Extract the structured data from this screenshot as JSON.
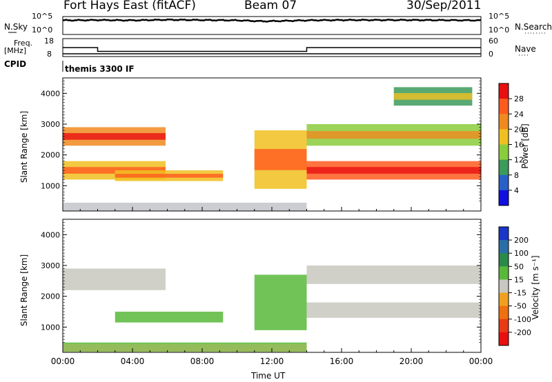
{
  "header": {
    "station": "Fort Hays East (fitACF)",
    "beam": "Beam 07",
    "date": "30/Sep/2011"
  },
  "summary_panel": {
    "nsky_label": "N.Sky",
    "nsky_ticks": [
      "10^5",
      "10^0"
    ],
    "nsearch_label": "N.Search",
    "nsearch_ticks": [
      "10^5",
      "10^0"
    ],
    "freq_label": "Freq.",
    "freq_unit": "[MHz]",
    "freq_ticks": [
      "18",
      "8"
    ],
    "nave_label": "Nave",
    "nave_ticks": [
      "60",
      "0"
    ],
    "cpid_label": "CPID",
    "cpid_value": "themis 3300 IF"
  },
  "colorbar_power": {
    "label": "Power [dB]",
    "ticks": [
      "28",
      "24",
      "20",
      "16",
      "12",
      "8",
      "4"
    ],
    "colors": [
      "#e81010",
      "#ff5a1e",
      "#f08a1e",
      "#f0c020",
      "#8acd3c",
      "#3c9a5a",
      "#2860c8",
      "#1010e0"
    ]
  },
  "colorbar_velocity": {
    "label": "Velocity [m s⁻¹]",
    "ticks": [
      "200",
      "100",
      "50",
      "15",
      "-15",
      "-50",
      "-100",
      "-200"
    ],
    "colors": [
      "#1a36c8",
      "#2a6ea8",
      "#2a8a4a",
      "#58b83a",
      "#c8c8c0",
      "#f0a020",
      "#f07010",
      "#e83a14",
      "#e81010"
    ]
  },
  "axes": {
    "ylabel": "Slant Range [km]",
    "y_ticks": [
      "4000",
      "3000",
      "2000",
      "1000"
    ],
    "xlabel": "Time UT",
    "x_ticks": [
      "00:00",
      "04:00",
      "08:00",
      "12:00",
      "16:00",
      "20:00",
      "00:00"
    ]
  },
  "chart_data": [
    {
      "type": "line",
      "title": "",
      "series": [
        {
          "name": "N.Sky",
          "x_hours": [
            0,
            2,
            4,
            6,
            8,
            10,
            11.5,
            12.5,
            14,
            16,
            20,
            24
          ],
          "log10_values": [
            4.2,
            4.3,
            4.2,
            4.4,
            4.3,
            4.2,
            3.9,
            4.0,
            4.2,
            4.3,
            4.3,
            4.2
          ]
        },
        {
          "name": "Freq.",
          "x_hours": [
            0,
            2,
            2,
            14,
            14,
            24
          ],
          "values": [
            13,
            13,
            10.5,
            10.5,
            13,
            13
          ],
          "unit": "MHz",
          "ylim": [
            8,
            18
          ]
        }
      ]
    },
    {
      "type": "heatmap",
      "title": "Power",
      "xlabel": "Time UT",
      "ylabel": "Slant Range [km]",
      "xlim_hours": [
        0,
        24
      ],
      "ylim_km": [
        180,
        4500
      ],
      "colorbar": {
        "label": "Power [dB]",
        "ticks": [
          4,
          8,
          12,
          16,
          20,
          24,
          28
        ]
      },
      "echo_regions": [
        {
          "t_start": 0,
          "t_end": 5.9,
          "range_min": 1200,
          "range_max": 1800,
          "power_db": 16
        },
        {
          "t_start": 0,
          "t_end": 5.9,
          "range_min": 2300,
          "range_max": 2900,
          "power_db": 20
        },
        {
          "t_start": 3.0,
          "t_end": 9.2,
          "range_min": 1150,
          "range_max": 1500,
          "power_db": 18
        },
        {
          "t_start": 11.0,
          "t_end": 14.0,
          "range_min": 900,
          "range_max": 2800,
          "power_db": 16
        },
        {
          "t_start": 14.0,
          "t_end": 24.0,
          "range_min": 1200,
          "range_max": 1800,
          "power_db": 24
        },
        {
          "t_start": 14.0,
          "t_end": 24.0,
          "range_min": 2300,
          "range_max": 3000,
          "power_db": 12
        },
        {
          "t_start": 19.0,
          "t_end": 23.5,
          "range_min": 3600,
          "range_max": 4200,
          "power_db": 8
        }
      ]
    },
    {
      "type": "heatmap",
      "title": "Velocity",
      "xlabel": "Time UT",
      "ylabel": "Slant Range [km]",
      "xlim_hours": [
        0,
        24
      ],
      "ylim_km": [
        180,
        4500
      ],
      "colorbar": {
        "label": "Velocity [m s⁻¹]",
        "ticks": [
          -200,
          -100,
          -50,
          -15,
          15,
          50,
          100,
          200
        ]
      },
      "echo_regions": [
        {
          "t_start": 0,
          "t_end": 5.9,
          "range_min": 2200,
          "range_max": 2900,
          "velocity": 0
        },
        {
          "t_start": 3.0,
          "t_end": 9.2,
          "range_min": 1150,
          "range_max": 1500,
          "velocity": 30
        },
        {
          "t_start": 11.0,
          "t_end": 14.0,
          "range_min": 900,
          "range_max": 2700,
          "velocity": 30
        },
        {
          "t_start": 14.0,
          "t_end": 24.0,
          "range_min": 1300,
          "range_max": 1800,
          "velocity": 0
        },
        {
          "t_start": 14.0,
          "t_end": 24.0,
          "range_min": 2400,
          "range_max": 3000,
          "velocity": 0
        },
        {
          "t_start": 0,
          "t_end": 14.0,
          "range_min": 200,
          "range_max": 500,
          "velocity": 30
        }
      ]
    }
  ]
}
